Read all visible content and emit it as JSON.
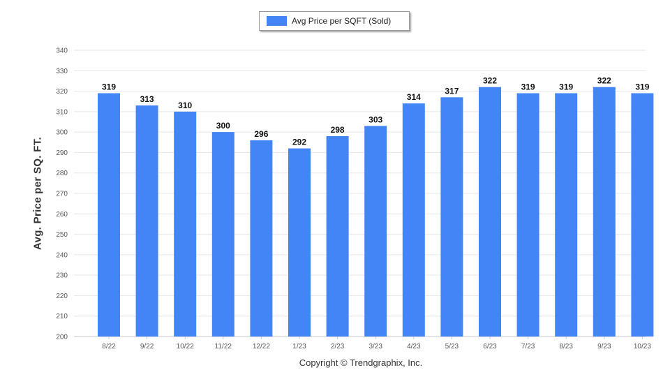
{
  "legend": {
    "label": "Avg Price per SQFT (Sold)",
    "color": "#4385f5"
  },
  "footer": {
    "copyright": "Copyright © Trendgraphix, Inc."
  },
  "chart_data": {
    "type": "bar",
    "title": "",
    "xlabel": "",
    "ylabel": "Avg. Price per SQ. FT.",
    "ylim": [
      200,
      340
    ],
    "ytick_step": 10,
    "grid": true,
    "legend_position": "top-center",
    "categories": [
      "8/22",
      "9/22",
      "10/22",
      "11/22",
      "12/22",
      "1/23",
      "2/23",
      "3/23",
      "4/23",
      "5/23",
      "6/23",
      "7/23",
      "8/23",
      "9/23",
      "10/23"
    ],
    "series": [
      {
        "name": "Avg Price per SQFT (Sold)",
        "color": "#4385f5",
        "values": [
          319,
          313,
          310,
          300,
          296,
          292,
          298,
          303,
          314,
          317,
          322,
          319,
          319,
          322,
          319
        ]
      }
    ]
  }
}
